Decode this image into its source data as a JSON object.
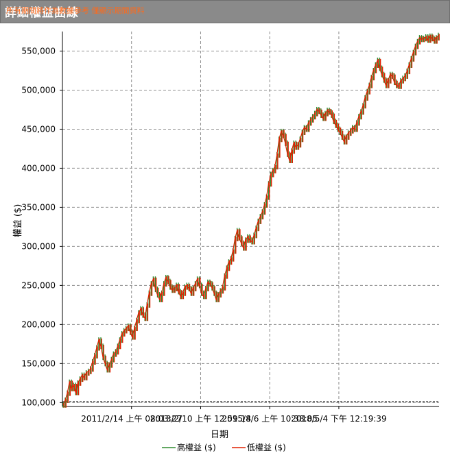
{
  "window": {
    "title": "詳細權益曲線",
    "subtitle": "所有期間將作為數據參考 僅顯示期間資料",
    "title_color": "#ffffff",
    "titlebar_color": "#8a8a8a",
    "subtitle_color": "#ff6a1a"
  },
  "chart_data": {
    "type": "line",
    "title": "",
    "xlabel": "日期",
    "ylabel": "權益 ($)",
    "ylim": [
      95000,
      575000
    ],
    "y_ticks": [
      100000,
      150000,
      200000,
      250000,
      300000,
      350000,
      400000,
      450000,
      500000,
      550000
    ],
    "y_tick_labels": [
      "100,000",
      "150,000",
      "200,000",
      "250,000",
      "300,000",
      "350,000",
      "400,000",
      "450,000",
      "500,000",
      "550,000"
    ],
    "x_tick_labels": [
      "2011/2/14 上午 08:03:27",
      "2013/2/10 上午 12:59:14",
      "2015/8/6 上午 10:38:05",
      "2018/5/4 下午 12:19:39"
    ],
    "grid": true,
    "legend_position": "bottom",
    "x_count": 180,
    "series": [
      {
        "name": "高權益 ($)",
        "color": "#2e8b2e"
      },
      {
        "name": "低權益 ($)",
        "color": "#e02000"
      }
    ],
    "x": [
      0,
      1,
      2,
      3,
      4,
      5,
      6,
      7,
      8,
      9,
      10,
      11,
      12,
      13,
      14,
      15,
      16,
      17,
      18,
      19,
      20,
      21,
      22,
      23,
      24,
      25,
      26,
      27,
      28,
      29,
      30,
      31,
      32,
      33,
      34,
      35,
      36,
      37,
      38,
      39,
      40,
      41,
      42,
      43,
      44,
      45,
      46,
      47,
      48,
      49,
      50,
      51,
      52,
      53,
      54,
      55,
      56,
      57,
      58,
      59,
      60,
      61,
      62,
      63,
      64,
      65,
      66,
      67,
      68,
      69,
      70,
      71,
      72,
      73,
      74,
      75,
      76,
      77,
      78,
      79,
      80,
      81,
      82,
      83,
      84,
      85,
      86,
      87,
      88,
      89,
      90,
      91,
      92,
      93,
      94,
      95,
      96,
      97,
      98,
      99,
      100,
      101,
      102,
      103,
      104,
      105,
      106,
      107,
      108,
      109,
      110,
      111,
      112,
      113,
      114,
      115,
      116,
      117,
      118,
      119,
      120,
      121,
      122,
      123,
      124,
      125,
      126,
      127,
      128,
      129,
      130,
      131,
      132,
      133,
      134,
      135,
      136,
      137,
      138,
      139,
      140,
      141,
      142,
      143,
      144,
      145,
      146,
      147,
      148,
      149,
      150,
      151,
      152,
      153,
      154,
      155,
      156,
      157,
      158,
      159,
      160,
      161,
      162,
      163,
      164,
      165,
      166,
      167,
      168,
      169,
      170,
      171,
      172,
      173,
      174,
      175,
      176,
      177,
      178,
      179
    ],
    "values": [
      97000,
      103000,
      112000,
      126000,
      118000,
      122000,
      113000,
      125000,
      130000,
      135000,
      132000,
      138000,
      140000,
      143000,
      152000,
      160000,
      170000,
      180000,
      172000,
      158000,
      150000,
      142000,
      148000,
      155000,
      162000,
      165000,
      172000,
      180000,
      188000,
      192000,
      195000,
      198000,
      190000,
      184000,
      195000,
      205000,
      215000,
      220000,
      212000,
      208000,
      225000,
      240000,
      252000,
      258000,
      245000,
      238000,
      232000,
      240000,
      252000,
      260000,
      255000,
      248000,
      244000,
      246000,
      250000,
      242000,
      236000,
      240000,
      248000,
      250000,
      246000,
      240000,
      246000,
      252000,
      258000,
      250000,
      240000,
      236000,
      246000,
      254000,
      252000,
      247000,
      240000,
      232000,
      238000,
      243000,
      247000,
      262000,
      272000,
      280000,
      284000,
      294000,
      310000,
      320000,
      311000,
      304000,
      298000,
      308000,
      312000,
      308000,
      306000,
      314000,
      323000,
      332000,
      338000,
      344000,
      353000,
      363000,
      380000,
      392000,
      397000,
      402000,
      417000,
      437000,
      447000,
      442000,
      432000,
      418000,
      410000,
      422000,
      432000,
      427000,
      430000,
      437000,
      446000,
      452000,
      450000,
      458000,
      462000,
      466000,
      470000,
      475000,
      473000,
      468000,
      464000,
      470000,
      474000,
      472000,
      468000,
      460000,
      455000,
      450000,
      446000,
      440000,
      434000,
      440000,
      445000,
      448000,
      452000,
      450000,
      458000,
      466000,
      472000,
      480000,
      490000,
      498000,
      506000,
      516000,
      525000,
      532000,
      538000,
      528000,
      520000,
      513000,
      506000,
      512000,
      520000,
      518000,
      510000,
      506000,
      505000,
      512000,
      515000,
      518000,
      524000,
      532000,
      540000,
      548000,
      556000,
      562000,
      567000,
      565000,
      566000,
      568000,
      564000,
      569000,
      566000,
      563000,
      567000,
      570000
    ]
  }
}
